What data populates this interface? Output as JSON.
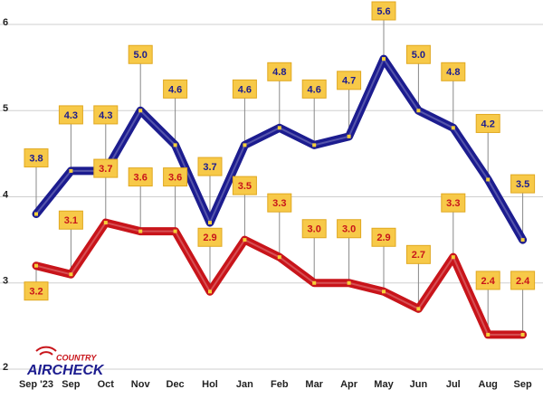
{
  "chart_data": {
    "type": "line",
    "logo": {
      "top": "COUNTRY",
      "bottom": "AIRCHECK"
    },
    "categories": [
      "Sep '23",
      "Sep",
      "Oct",
      "Nov",
      "Dec",
      "Hol",
      "Jan",
      "Feb",
      "Mar",
      "Apr",
      "May",
      "Jun",
      "Jul",
      "Aug",
      "Sep"
    ],
    "series": [
      {
        "color": "#1c1c8f",
        "label_color": "#1c1c8f",
        "values": [
          3.8,
          4.3,
          4.3,
          5.0,
          4.6,
          3.7,
          4.6,
          4.8,
          4.6,
          4.7,
          5.6,
          5.0,
          4.8,
          4.2,
          3.5
        ],
        "value_labels": [
          "3.8",
          "4.3",
          "4.3",
          "5.0",
          "4.6",
          "3.7",
          "4.6",
          "4.8",
          "4.6",
          "4.7",
          "5.6",
          "5.0",
          "4.8",
          "4.2",
          "3.5"
        ]
      },
      {
        "color": "#c8141a",
        "label_color": "#c8141a",
        "values": [
          3.2,
          3.1,
          3.7,
          3.6,
          3.6,
          2.9,
          3.5,
          3.3,
          3.0,
          3.0,
          2.9,
          2.7,
          3.3,
          2.4,
          2.4
        ],
        "value_labels": [
          "3.2",
          "3.1",
          "3.7",
          "3.6",
          "3.6",
          "2.9",
          "3.5",
          "3.3",
          "3.0",
          "3.0",
          "2.9",
          "2.7",
          "3.3",
          "2.4",
          "2.4"
        ]
      }
    ],
    "ylim": [
      2,
      6
    ],
    "yticks": [
      2,
      3,
      4,
      5,
      6
    ],
    "grid": true
  }
}
